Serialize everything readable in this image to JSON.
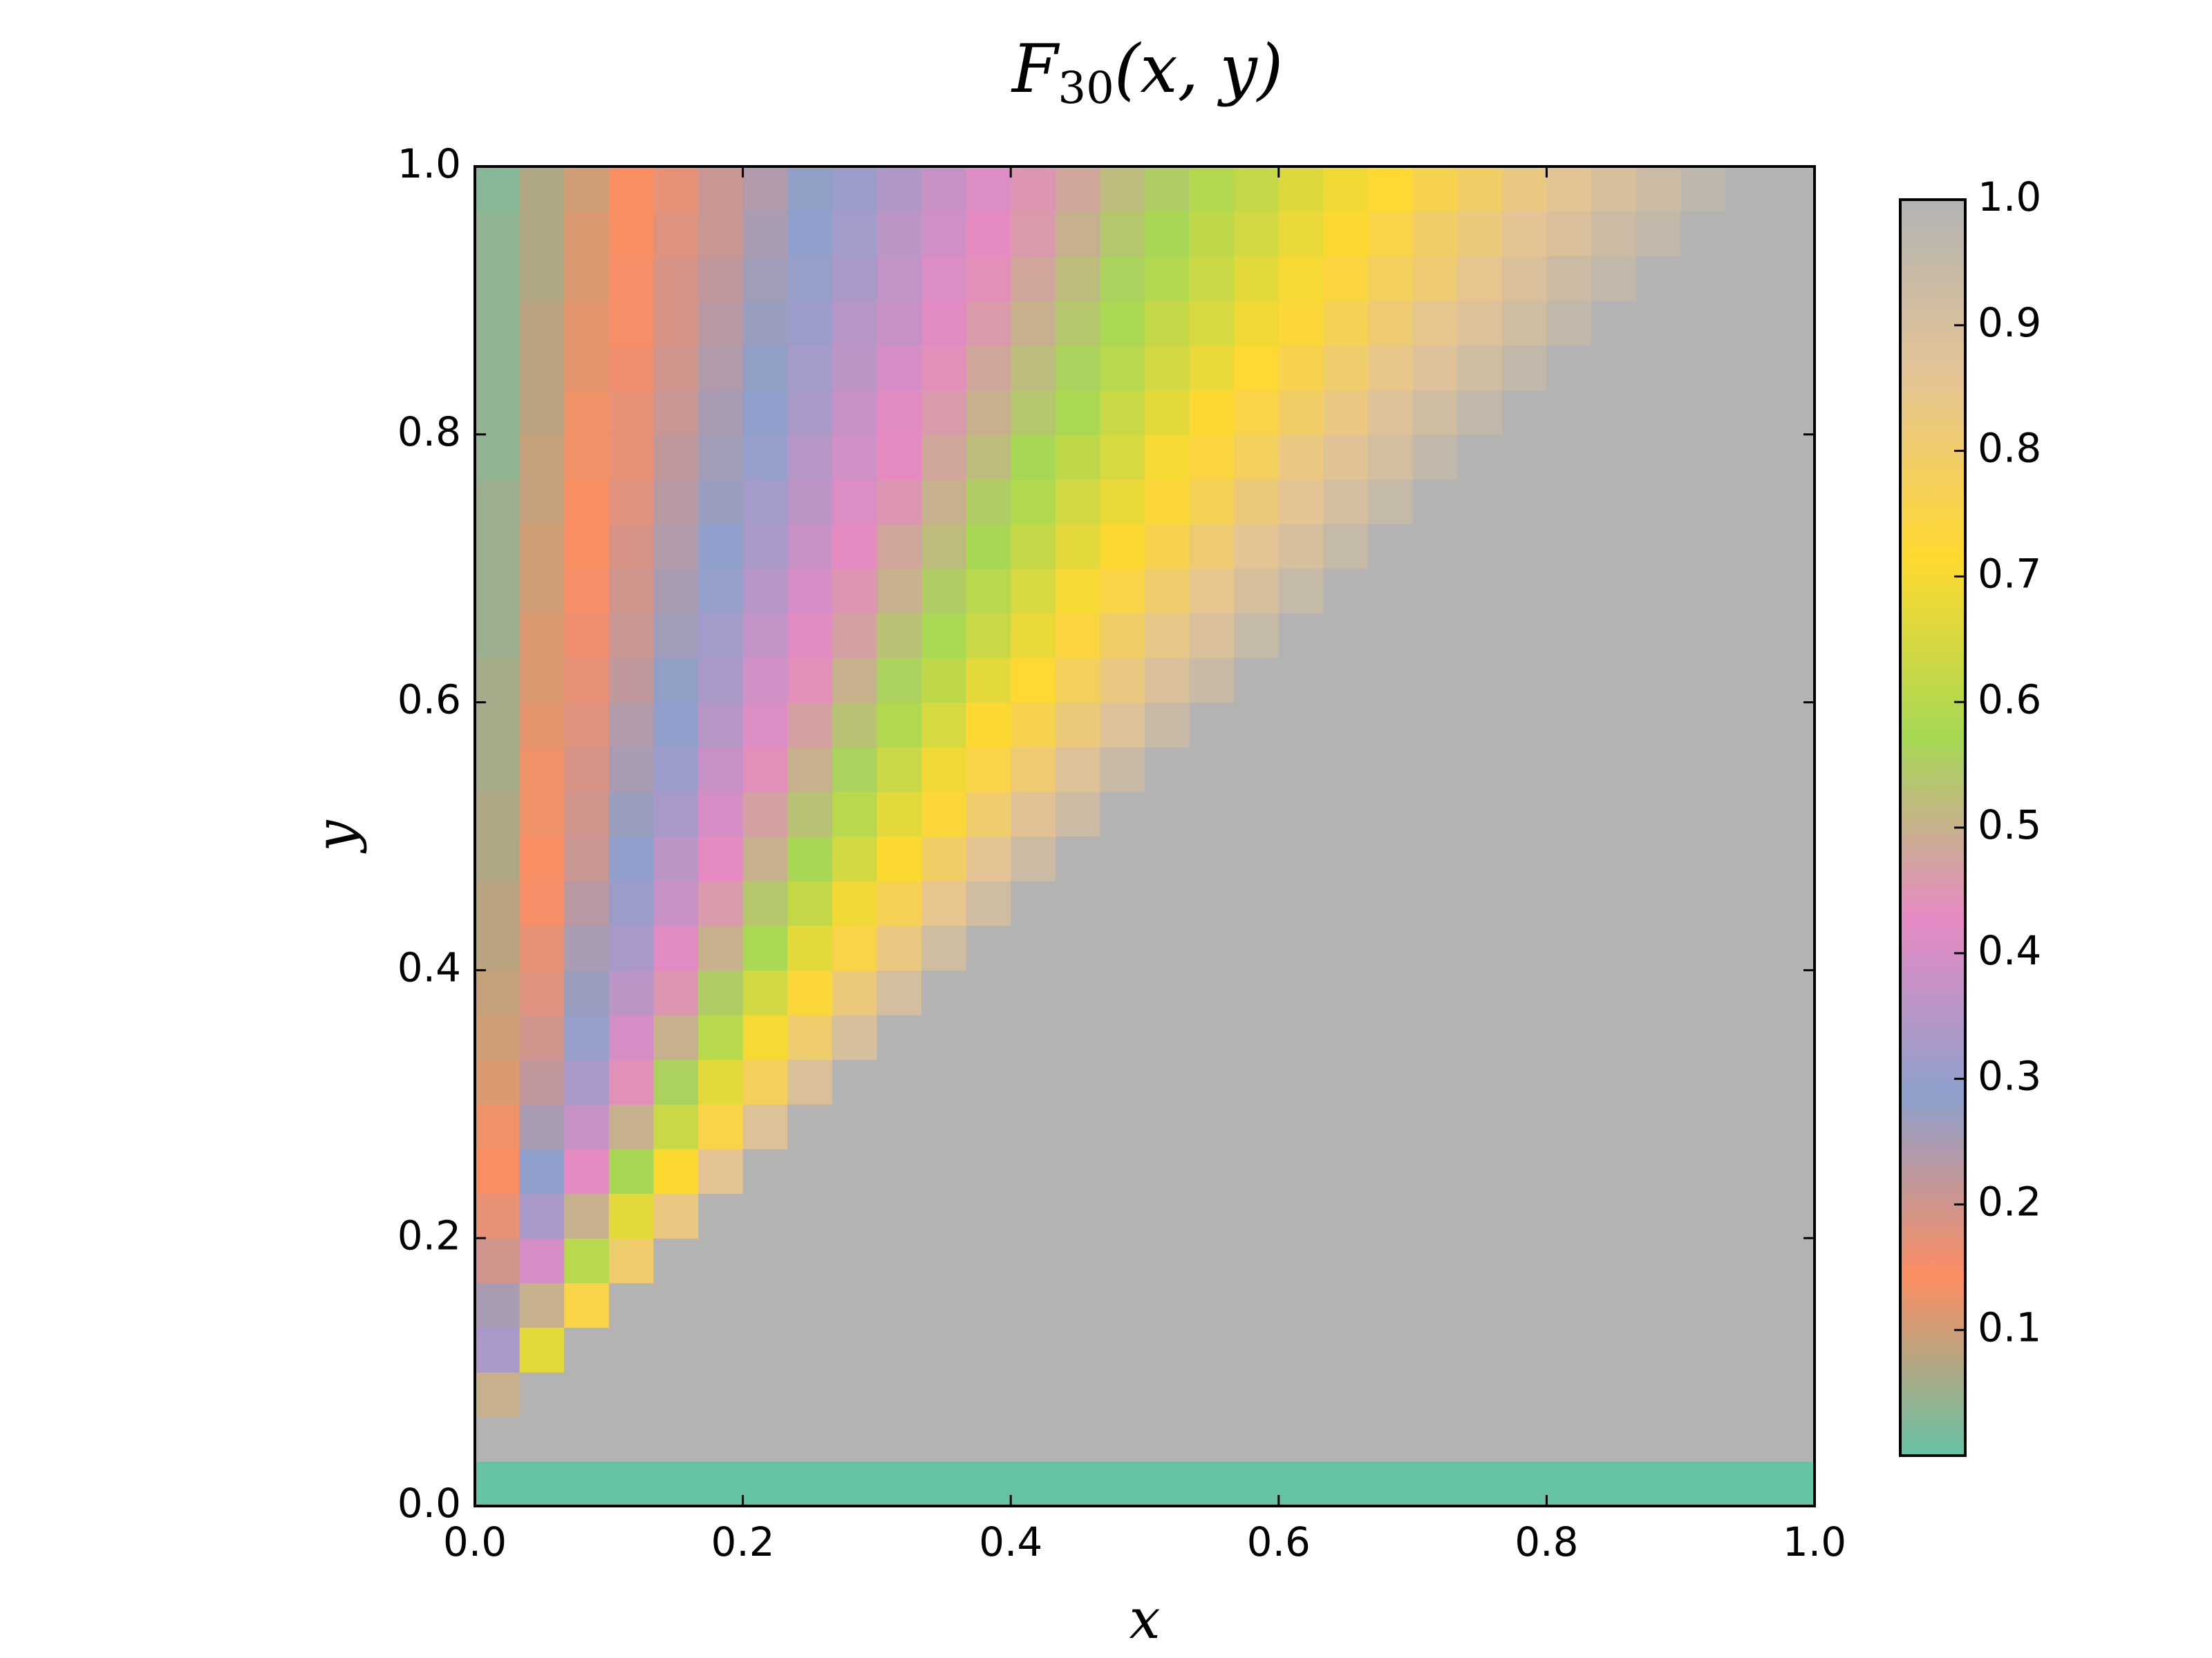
{
  "chart_data": {
    "type": "heatmap",
    "title_main": "F",
    "title_sub": "30",
    "title_rest": "(x, y)",
    "x_label": "x",
    "y_label": "y",
    "xlim": [
      0,
      1
    ],
    "ylim": [
      0,
      1
    ],
    "xticks": [
      {
        "value": 0,
        "label": "0.0"
      },
      {
        "value": 0.2,
        "label": "0.2"
      },
      {
        "value": 0.4,
        "label": "0.4"
      },
      {
        "value": 0.6,
        "label": "0.6"
      },
      {
        "value": 0.8,
        "label": "0.8"
      },
      {
        "value": 1,
        "label": "1.0"
      }
    ],
    "yticks": [
      {
        "value": 0,
        "label": "0.0"
      },
      {
        "value": 0.2,
        "label": "0.2"
      },
      {
        "value": 0.4,
        "label": "0.4"
      },
      {
        "value": 0.6,
        "label": "0.6"
      },
      {
        "value": 0.8,
        "label": "0.8"
      },
      {
        "value": 1,
        "label": "1.0"
      }
    ],
    "colorbar_lim": [
      0,
      1
    ],
    "colorbar_ticks": [
      0.1,
      0.2,
      0.3,
      0.4,
      0.5,
      0.6,
      0.7,
      0.8,
      0.9,
      {
        "value": 1,
        "label": "1.0"
      }
    ],
    "colormap": [
      "#66c2a5",
      "#fc8d62",
      "#8da0cb",
      "#e78ac3",
      "#a6d854",
      "#ffd92f",
      "#e5c494",
      "#b3b3b3"
    ],
    "z": [
      [
        0,
        0,
        0,
        0,
        0,
        0,
        0,
        0,
        0,
        0,
        0,
        0,
        0,
        0,
        0,
        0,
        0,
        0,
        0,
        0,
        0,
        0,
        0,
        0,
        0,
        0,
        0,
        0,
        0,
        0
      ],
      [
        1,
        1,
        1,
        1,
        1,
        1,
        1,
        1,
        1,
        1,
        1,
        1,
        1,
        1,
        1,
        1,
        1,
        1,
        1,
        1,
        1,
        1,
        1,
        1,
        1,
        1,
        1,
        1,
        1,
        1
      ],
      [
        0.5,
        1,
        1,
        1,
        1,
        1,
        1,
        1,
        1,
        1,
        1,
        1,
        1,
        1,
        1,
        1,
        1,
        1,
        1,
        1,
        1,
        1,
        1,
        1,
        1,
        1,
        1,
        1,
        1,
        1
      ],
      [
        0.33,
        0.67,
        1,
        1,
        1,
        1,
        1,
        1,
        1,
        1,
        1,
        1,
        1,
        1,
        1,
        1,
        1,
        1,
        1,
        1,
        1,
        1,
        1,
        1,
        1,
        1,
        1,
        1,
        1,
        1
      ],
      [
        0.25,
        0.5,
        0.75,
        1,
        1,
        1,
        1,
        1,
        1,
        1,
        1,
        1,
        1,
        1,
        1,
        1,
        1,
        1,
        1,
        1,
        1,
        1,
        1,
        1,
        1,
        1,
        1,
        1,
        1,
        1
      ],
      [
        0.2,
        0.4,
        0.6,
        0.8,
        1,
        1,
        1,
        1,
        1,
        1,
        1,
        1,
        1,
        1,
        1,
        1,
        1,
        1,
        1,
        1,
        1,
        1,
        1,
        1,
        1,
        1,
        1,
        1,
        1,
        1
      ],
      [
        0.17,
        0.33,
        0.5,
        0.67,
        0.83,
        1,
        1,
        1,
        1,
        1,
        1,
        1,
        1,
        1,
        1,
        1,
        1,
        1,
        1,
        1,
        1,
        1,
        1,
        1,
        1,
        1,
        1,
        1,
        1,
        1
      ],
      [
        0.14,
        0.29,
        0.43,
        0.57,
        0.71,
        0.86,
        1,
        1,
        1,
        1,
        1,
        1,
        1,
        1,
        1,
        1,
        1,
        1,
        1,
        1,
        1,
        1,
        1,
        1,
        1,
        1,
        1,
        1,
        1,
        1
      ],
      [
        0.13,
        0.25,
        0.38,
        0.5,
        0.63,
        0.75,
        0.88,
        1,
        1,
        1,
        1,
        1,
        1,
        1,
        1,
        1,
        1,
        1,
        1,
        1,
        1,
        1,
        1,
        1,
        1,
        1,
        1,
        1,
        1,
        1
      ],
      [
        0.11,
        0.22,
        0.33,
        0.44,
        0.56,
        0.67,
        0.78,
        0.89,
        1,
        1,
        1,
        1,
        1,
        1,
        1,
        1,
        1,
        1,
        1,
        1,
        1,
        1,
        1,
        1,
        1,
        1,
        1,
        1,
        1,
        1
      ],
      [
        0.1,
        0.2,
        0.3,
        0.4,
        0.5,
        0.6,
        0.7,
        0.8,
        0.9,
        1,
        1,
        1,
        1,
        1,
        1,
        1,
        1,
        1,
        1,
        1,
        1,
        1,
        1,
        1,
        1,
        1,
        1,
        1,
        1,
        1
      ],
      [
        0.09,
        0.18,
        0.27,
        0.36,
        0.45,
        0.55,
        0.64,
        0.73,
        0.82,
        0.91,
        1,
        1,
        1,
        1,
        1,
        1,
        1,
        1,
        1,
        1,
        1,
        1,
        1,
        1,
        1,
        1,
        1,
        1,
        1,
        1
      ],
      [
        0.08,
        0.17,
        0.25,
        0.33,
        0.42,
        0.5,
        0.58,
        0.67,
        0.75,
        0.83,
        0.92,
        1,
        1,
        1,
        1,
        1,
        1,
        1,
        1,
        1,
        1,
        1,
        1,
        1,
        1,
        1,
        1,
        1,
        1,
        1
      ],
      [
        0.08,
        0.15,
        0.23,
        0.31,
        0.38,
        0.46,
        0.54,
        0.62,
        0.69,
        0.77,
        0.85,
        0.92,
        1,
        1,
        1,
        1,
        1,
        1,
        1,
        1,
        1,
        1,
        1,
        1,
        1,
        1,
        1,
        1,
        1,
        1
      ],
      [
        0.07,
        0.14,
        0.21,
        0.29,
        0.36,
        0.43,
        0.5,
        0.57,
        0.64,
        0.71,
        0.79,
        0.86,
        0.93,
        1,
        1,
        1,
        1,
        1,
        1,
        1,
        1,
        1,
        1,
        1,
        1,
        1,
        1,
        1,
        1,
        1
      ],
      [
        0.07,
        0.13,
        0.2,
        0.27,
        0.33,
        0.4,
        0.47,
        0.53,
        0.6,
        0.67,
        0.73,
        0.8,
        0.87,
        0.93,
        1,
        1,
        1,
        1,
        1,
        1,
        1,
        1,
        1,
        1,
        1,
        1,
        1,
        1,
        1,
        1
      ],
      [
        0.06,
        0.13,
        0.19,
        0.25,
        0.31,
        0.38,
        0.44,
        0.5,
        0.56,
        0.63,
        0.69,
        0.75,
        0.81,
        0.88,
        0.94,
        1,
        1,
        1,
        1,
        1,
        1,
        1,
        1,
        1,
        1,
        1,
        1,
        1,
        1,
        1
      ],
      [
        0.06,
        0.12,
        0.18,
        0.24,
        0.29,
        0.35,
        0.41,
        0.47,
        0.53,
        0.59,
        0.65,
        0.71,
        0.76,
        0.82,
        0.88,
        0.94,
        1,
        1,
        1,
        1,
        1,
        1,
        1,
        1,
        1,
        1,
        1,
        1,
        1,
        1
      ],
      [
        0.06,
        0.11,
        0.17,
        0.22,
        0.28,
        0.33,
        0.39,
        0.44,
        0.5,
        0.56,
        0.61,
        0.67,
        0.72,
        0.78,
        0.83,
        0.89,
        0.94,
        1,
        1,
        1,
        1,
        1,
        1,
        1,
        1,
        1,
        1,
        1,
        1,
        1
      ],
      [
        0.05,
        0.11,
        0.16,
        0.21,
        0.26,
        0.32,
        0.37,
        0.42,
        0.47,
        0.53,
        0.58,
        0.63,
        0.68,
        0.74,
        0.79,
        0.84,
        0.89,
        0.95,
        1,
        1,
        1,
        1,
        1,
        1,
        1,
        1,
        1,
        1,
        1,
        1
      ],
      [
        0.05,
        0.1,
        0.15,
        0.2,
        0.25,
        0.3,
        0.35,
        0.4,
        0.45,
        0.5,
        0.55,
        0.6,
        0.65,
        0.7,
        0.75,
        0.8,
        0.85,
        0.9,
        0.95,
        1,
        1,
        1,
        1,
        1,
        1,
        1,
        1,
        1,
        1,
        1
      ],
      [
        0.05,
        0.1,
        0.14,
        0.19,
        0.24,
        0.29,
        0.33,
        0.38,
        0.43,
        0.48,
        0.52,
        0.57,
        0.62,
        0.67,
        0.71,
        0.76,
        0.81,
        0.86,
        0.9,
        0.95,
        1,
        1,
        1,
        1,
        1,
        1,
        1,
        1,
        1,
        1
      ],
      [
        0.05,
        0.09,
        0.14,
        0.18,
        0.23,
        0.27,
        0.32,
        0.36,
        0.41,
        0.45,
        0.5,
        0.55,
        0.59,
        0.64,
        0.68,
        0.73,
        0.77,
        0.82,
        0.86,
        0.91,
        0.95,
        1,
        1,
        1,
        1,
        1,
        1,
        1,
        1,
        1
      ],
      [
        0.04,
        0.09,
        0.13,
        0.17,
        0.22,
        0.26,
        0.3,
        0.35,
        0.39,
        0.43,
        0.48,
        0.52,
        0.57,
        0.61,
        0.65,
        0.7,
        0.74,
        0.78,
        0.83,
        0.87,
        0.91,
        0.96,
        1,
        1,
        1,
        1,
        1,
        1,
        1,
        1
      ],
      [
        0.04,
        0.08,
        0.13,
        0.17,
        0.21,
        0.25,
        0.29,
        0.33,
        0.38,
        0.42,
        0.46,
        0.5,
        0.54,
        0.58,
        0.63,
        0.67,
        0.71,
        0.75,
        0.79,
        0.83,
        0.88,
        0.92,
        0.96,
        1,
        1,
        1,
        1,
        1,
        1,
        1
      ],
      [
        0.04,
        0.08,
        0.12,
        0.16,
        0.2,
        0.24,
        0.28,
        0.32,
        0.36,
        0.4,
        0.44,
        0.48,
        0.52,
        0.56,
        0.6,
        0.64,
        0.68,
        0.72,
        0.76,
        0.8,
        0.84,
        0.88,
        0.92,
        0.96,
        1,
        1,
        1,
        1,
        1,
        1
      ],
      [
        0.04,
        0.08,
        0.12,
        0.15,
        0.19,
        0.23,
        0.27,
        0.31,
        0.35,
        0.38,
        0.42,
        0.46,
        0.5,
        0.54,
        0.58,
        0.62,
        0.65,
        0.69,
        0.73,
        0.77,
        0.81,
        0.85,
        0.88,
        0.92,
        0.96,
        1,
        1,
        1,
        1,
        1
      ],
      [
        0.04,
        0.07,
        0.11,
        0.15,
        0.19,
        0.22,
        0.26,
        0.3,
        0.33,
        0.37,
        0.41,
        0.44,
        0.48,
        0.52,
        0.56,
        0.59,
        0.63,
        0.67,
        0.7,
        0.74,
        0.78,
        0.81,
        0.85,
        0.89,
        0.93,
        0.96,
        1,
        1,
        1,
        1
      ],
      [
        0.04,
        0.07,
        0.11,
        0.14,
        0.18,
        0.21,
        0.25,
        0.29,
        0.32,
        0.36,
        0.39,
        0.43,
        0.46,
        0.5,
        0.54,
        0.57,
        0.61,
        0.64,
        0.68,
        0.71,
        0.75,
        0.79,
        0.82,
        0.86,
        0.89,
        0.93,
        0.96,
        1,
        1,
        1
      ],
      [
        0.03,
        0.07,
        0.1,
        0.14,
        0.17,
        0.21,
        0.24,
        0.28,
        0.31,
        0.34,
        0.38,
        0.41,
        0.45,
        0.48,
        0.52,
        0.55,
        0.59,
        0.62,
        0.66,
        0.69,
        0.72,
        0.76,
        0.79,
        0.83,
        0.86,
        0.9,
        0.93,
        0.97,
        1,
        1
      ]
    ]
  }
}
